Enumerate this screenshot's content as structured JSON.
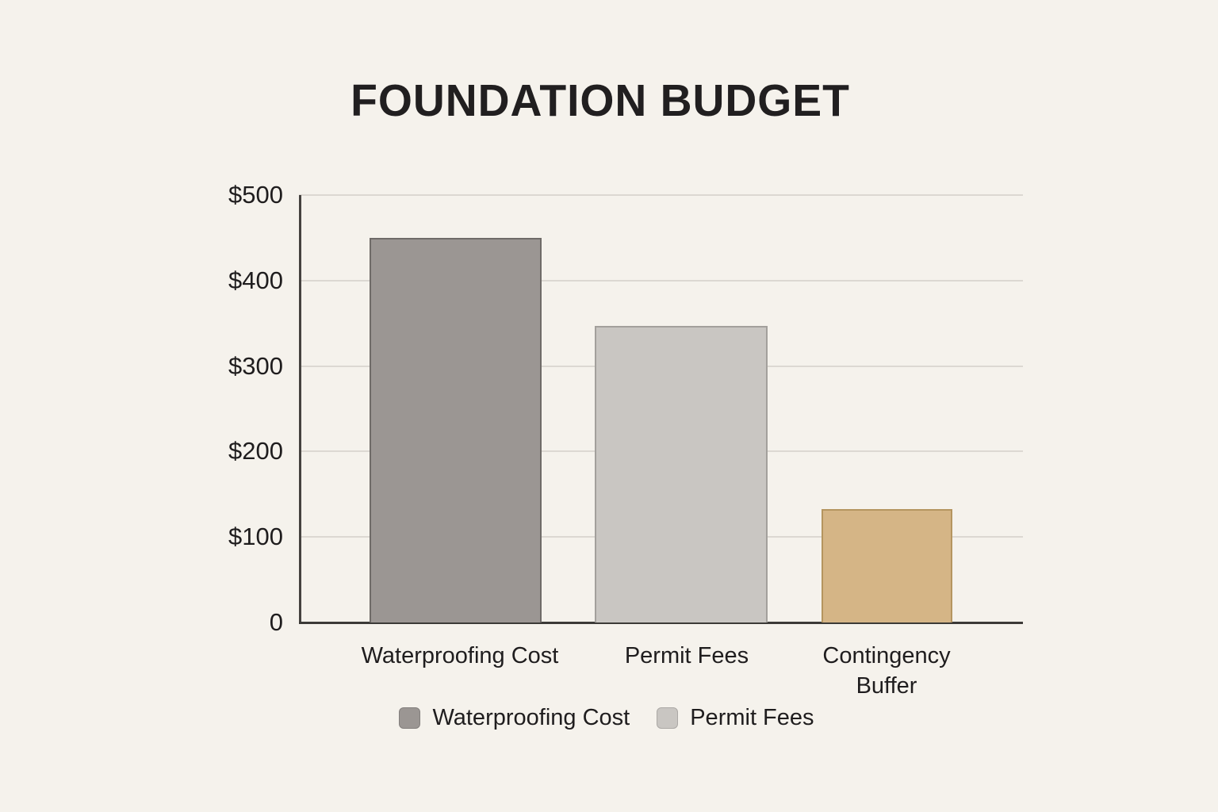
{
  "chart_data": {
    "type": "bar",
    "title": "FOUNDATION BUDGET",
    "categories": [
      "Waterproofing Cost",
      "Permit Fees",
      "Contingency Buffer"
    ],
    "values": [
      450,
      347,
      133
    ],
    "xlabel": "",
    "ylabel": "",
    "ylim": [
      0,
      500
    ],
    "y_ticks": [
      500,
      400,
      300,
      200,
      100,
      0
    ],
    "y_tick_labels": [
      "$500",
      "$400",
      "$300",
      "$200",
      "$100",
      "0"
    ],
    "grid": true,
    "legend": {
      "position": "bottom",
      "entries": [
        {
          "label": "Waterproofing Cost",
          "color": "#9b9693",
          "border": "#6f6b68"
        },
        {
          "label": "Permit Fees",
          "color": "#c9c6c2",
          "border": "#a3a09c"
        }
      ]
    },
    "bars": [
      {
        "category": "Waterproofing Cost",
        "value": 450,
        "color": "#9b9693",
        "border": "#6f6b68"
      },
      {
        "category": "Permit Fees",
        "value": 347,
        "color": "#c9c6c2",
        "border": "#a3a09c"
      },
      {
        "category": "Contingency Buffer",
        "value": 133,
        "color": "#d5b586",
        "border": "#b5955f"
      }
    ],
    "colors": {
      "background": "#f5f2ec",
      "gridline": "#dcd8d2",
      "axis": "#3c3a37",
      "text": "#1f1d1e"
    }
  }
}
